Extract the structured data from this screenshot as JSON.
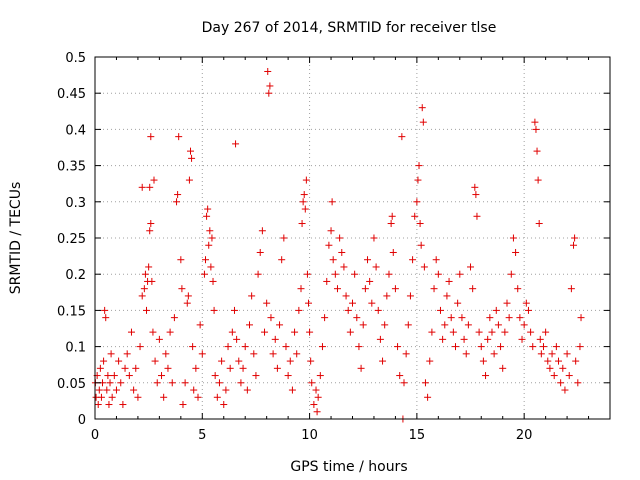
{
  "chart_data": {
    "type": "scatter",
    "title": "Day 267 of 2014, SRMTID for receiver tlse",
    "xlabel": "GPS time / hours",
    "ylabel": "SRMTID / TECUs",
    "xlim": [
      0,
      24
    ],
    "ylim": [
      0,
      0.5
    ],
    "xticks": [
      0,
      5,
      10,
      15,
      20
    ],
    "xtick_labels": [
      "0",
      "5",
      "10",
      "15",
      "20"
    ],
    "yticks": [
      0,
      0.05,
      0.1,
      0.15,
      0.2,
      0.25,
      0.3,
      0.35,
      0.4,
      0.45,
      0.5
    ],
    "ytick_labels": [
      "0",
      "0.05",
      "0.1",
      "0.15",
      "0.2",
      "0.25",
      "0.3",
      "0.35",
      "0.4",
      "0.45",
      "0.5"
    ],
    "grid": true,
    "marker": "plus",
    "color": "#e00000",
    "series": [
      {
        "values": [
          [
            0.02,
            0.05
          ],
          [
            0.05,
            0.03
          ],
          [
            0.1,
            0.06
          ],
          [
            0.15,
            0.02
          ],
          [
            0.2,
            0.04
          ],
          [
            0.25,
            0.07
          ],
          [
            0.3,
            0.03
          ],
          [
            0.35,
            0.05
          ],
          [
            0.4,
            0.08
          ],
          [
            0.45,
            0.15
          ],
          [
            0.5,
            0.14
          ],
          [
            0.55,
            0.04
          ],
          [
            0.6,
            0.06
          ],
          [
            0.65,
            0.02
          ],
          [
            0.7,
            0.05
          ],
          [
            0.75,
            0.09
          ],
          [
            0.8,
            0.03
          ],
          [
            0.9,
            0.06
          ],
          [
            1.0,
            0.04
          ],
          [
            1.1,
            0.08
          ],
          [
            1.2,
            0.05
          ],
          [
            1.3,
            0.02
          ],
          [
            1.4,
            0.07
          ],
          [
            1.5,
            0.09
          ],
          [
            1.6,
            0.06
          ],
          [
            1.7,
            0.12
          ],
          [
            1.8,
            0.04
          ],
          [
            1.9,
            0.07
          ],
          [
            2.0,
            0.03
          ],
          [
            2.1,
            0.1
          ],
          [
            2.2,
            0.17
          ],
          [
            2.3,
            0.18
          ],
          [
            2.35,
            0.2
          ],
          [
            2.4,
            0.15
          ],
          [
            2.45,
            0.19
          ],
          [
            2.5,
            0.21
          ],
          [
            2.55,
            0.26
          ],
          [
            2.6,
            0.27
          ],
          [
            2.65,
            0.19
          ],
          [
            2.7,
            0.12
          ],
          [
            2.75,
            0.33
          ],
          [
            2.55,
            0.32
          ],
          [
            2.6,
            0.39
          ],
          [
            2.2,
            0.32
          ],
          [
            2.8,
            0.08
          ],
          [
            2.9,
            0.05
          ],
          [
            3.0,
            0.11
          ],
          [
            3.1,
            0.06
          ],
          [
            3.2,
            0.03
          ],
          [
            3.3,
            0.09
          ],
          [
            3.4,
            0.07
          ],
          [
            3.5,
            0.12
          ],
          [
            3.6,
            0.05
          ],
          [
            3.7,
            0.14
          ],
          [
            3.8,
            0.3
          ],
          [
            3.85,
            0.31
          ],
          [
            3.9,
            0.39
          ],
          [
            4.0,
            0.22
          ],
          [
            4.05,
            0.18
          ],
          [
            4.1,
            0.02
          ],
          [
            4.2,
            0.05
          ],
          [
            4.3,
            0.16
          ],
          [
            4.35,
            0.17
          ],
          [
            4.4,
            0.33
          ],
          [
            4.45,
            0.37
          ],
          [
            4.5,
            0.36
          ],
          [
            4.55,
            0.1
          ],
          [
            4.6,
            0.04
          ],
          [
            4.7,
            0.07
          ],
          [
            4.8,
            0.03
          ],
          [
            4.9,
            0.13
          ],
          [
            5.0,
            0.09
          ],
          [
            5.1,
            0.2
          ],
          [
            5.15,
            0.22
          ],
          [
            5.2,
            0.28
          ],
          [
            5.25,
            0.29
          ],
          [
            5.3,
            0.24
          ],
          [
            5.35,
            0.26
          ],
          [
            5.4,
            0.21
          ],
          [
            5.45,
            0.25
          ],
          [
            5.5,
            0.19
          ],
          [
            5.55,
            0.15
          ],
          [
            5.6,
            0.06
          ],
          [
            5.7,
            0.03
          ],
          [
            5.8,
            0.05
          ],
          [
            5.9,
            0.08
          ],
          [
            6.0,
            0.02
          ],
          [
            6.1,
            0.04
          ],
          [
            6.2,
            0.1
          ],
          [
            6.3,
            0.07
          ],
          [
            6.4,
            0.12
          ],
          [
            6.5,
            0.15
          ],
          [
            6.55,
            0.38
          ],
          [
            6.6,
            0.11
          ],
          [
            6.7,
            0.08
          ],
          [
            6.8,
            0.05
          ],
          [
            6.9,
            0.07
          ],
          [
            7.0,
            0.1
          ],
          [
            7.1,
            0.04
          ],
          [
            7.2,
            0.13
          ],
          [
            7.3,
            0.17
          ],
          [
            7.4,
            0.09
          ],
          [
            7.5,
            0.06
          ],
          [
            7.6,
            0.2
          ],
          [
            7.7,
            0.23
          ],
          [
            7.8,
            0.26
          ],
          [
            7.9,
            0.12
          ],
          [
            8.0,
            0.16
          ],
          [
            8.05,
            0.48
          ],
          [
            8.1,
            0.45
          ],
          [
            8.15,
            0.46
          ],
          [
            8.2,
            0.14
          ],
          [
            8.3,
            0.09
          ],
          [
            8.4,
            0.11
          ],
          [
            8.5,
            0.07
          ],
          [
            8.6,
            0.13
          ],
          [
            8.7,
            0.22
          ],
          [
            8.8,
            0.25
          ],
          [
            8.9,
            0.1
          ],
          [
            9.0,
            0.06
          ],
          [
            9.1,
            0.08
          ],
          [
            9.2,
            0.04
          ],
          [
            9.3,
            0.12
          ],
          [
            9.4,
            0.09
          ],
          [
            9.5,
            0.15
          ],
          [
            9.6,
            0.18
          ],
          [
            9.65,
            0.27
          ],
          [
            9.7,
            0.3
          ],
          [
            9.75,
            0.31
          ],
          [
            9.8,
            0.29
          ],
          [
            9.85,
            0.33
          ],
          [
            9.9,
            0.2
          ],
          [
            9.95,
            0.16
          ],
          [
            10.0,
            0.12
          ],
          [
            10.05,
            0.08
          ],
          [
            10.1,
            0.05
          ],
          [
            10.2,
            0.02
          ],
          [
            10.3,
            0.04
          ],
          [
            10.35,
            0.01
          ],
          [
            10.4,
            0.03
          ],
          [
            10.5,
            0.06
          ],
          [
            10.6,
            0.1
          ],
          [
            10.7,
            0.14
          ],
          [
            10.8,
            0.19
          ],
          [
            10.9,
            0.24
          ],
          [
            11.0,
            0.26
          ],
          [
            11.05,
            0.3
          ],
          [
            11.1,
            0.22
          ],
          [
            11.2,
            0.2
          ],
          [
            11.3,
            0.18
          ],
          [
            11.4,
            0.25
          ],
          [
            11.5,
            0.23
          ],
          [
            11.6,
            0.21
          ],
          [
            11.7,
            0.17
          ],
          [
            11.8,
            0.15
          ],
          [
            11.9,
            0.12
          ],
          [
            12.0,
            0.16
          ],
          [
            12.1,
            0.2
          ],
          [
            12.2,
            0.14
          ],
          [
            12.3,
            0.1
          ],
          [
            12.4,
            0.07
          ],
          [
            12.5,
            0.13
          ],
          [
            12.6,
            0.18
          ],
          [
            12.7,
            0.22
          ],
          [
            12.8,
            0.19
          ],
          [
            12.9,
            0.16
          ],
          [
            13.0,
            0.25
          ],
          [
            13.1,
            0.21
          ],
          [
            13.2,
            0.15
          ],
          [
            13.3,
            0.11
          ],
          [
            13.4,
            0.08
          ],
          [
            13.5,
            0.13
          ],
          [
            13.6,
            0.17
          ],
          [
            13.7,
            0.2
          ],
          [
            13.8,
            0.27
          ],
          [
            13.85,
            0.28
          ],
          [
            13.9,
            0.23
          ],
          [
            14.0,
            0.18
          ],
          [
            14.1,
            0.1
          ],
          [
            14.2,
            0.06
          ],
          [
            14.3,
            0.39
          ],
          [
            14.35,
            0.0
          ],
          [
            14.4,
            0.05
          ],
          [
            14.5,
            0.09
          ],
          [
            14.6,
            0.13
          ],
          [
            14.7,
            0.17
          ],
          [
            14.8,
            0.22
          ],
          [
            14.9,
            0.28
          ],
          [
            15.0,
            0.3
          ],
          [
            15.05,
            0.33
          ],
          [
            15.1,
            0.35
          ],
          [
            15.15,
            0.27
          ],
          [
            15.2,
            0.24
          ],
          [
            15.25,
            0.43
          ],
          [
            15.3,
            0.41
          ],
          [
            15.35,
            0.21
          ],
          [
            15.4,
            0.05
          ],
          [
            15.5,
            0.03
          ],
          [
            15.6,
            0.08
          ],
          [
            15.7,
            0.12
          ],
          [
            15.8,
            0.18
          ],
          [
            15.9,
            0.22
          ],
          [
            16.0,
            0.2
          ],
          [
            16.1,
            0.15
          ],
          [
            16.2,
            0.11
          ],
          [
            16.3,
            0.13
          ],
          [
            16.4,
            0.17
          ],
          [
            16.5,
            0.19
          ],
          [
            16.6,
            0.14
          ],
          [
            16.7,
            0.12
          ],
          [
            16.8,
            0.1
          ],
          [
            16.9,
            0.16
          ],
          [
            17.0,
            0.2
          ],
          [
            17.1,
            0.14
          ],
          [
            17.2,
            0.11
          ],
          [
            17.3,
            0.09
          ],
          [
            17.4,
            0.13
          ],
          [
            17.5,
            0.21
          ],
          [
            17.6,
            0.18
          ],
          [
            17.7,
            0.32
          ],
          [
            17.75,
            0.31
          ],
          [
            17.8,
            0.28
          ],
          [
            17.9,
            0.12
          ],
          [
            18.0,
            0.1
          ],
          [
            18.1,
            0.08
          ],
          [
            18.2,
            0.06
          ],
          [
            18.3,
            0.11
          ],
          [
            18.4,
            0.14
          ],
          [
            18.5,
            0.12
          ],
          [
            18.6,
            0.09
          ],
          [
            18.7,
            0.15
          ],
          [
            18.8,
            0.13
          ],
          [
            18.9,
            0.1
          ],
          [
            19.0,
            0.07
          ],
          [
            19.1,
            0.12
          ],
          [
            19.2,
            0.16
          ],
          [
            19.3,
            0.14
          ],
          [
            19.4,
            0.2
          ],
          [
            19.5,
            0.25
          ],
          [
            19.6,
            0.23
          ],
          [
            19.7,
            0.18
          ],
          [
            19.8,
            0.14
          ],
          [
            19.9,
            0.11
          ],
          [
            20.0,
            0.13
          ],
          [
            20.1,
            0.16
          ],
          [
            20.2,
            0.15
          ],
          [
            20.3,
            0.12
          ],
          [
            20.4,
            0.1
          ],
          [
            20.5,
            0.41
          ],
          [
            20.55,
            0.4
          ],
          [
            20.6,
            0.37
          ],
          [
            20.65,
            0.33
          ],
          [
            20.7,
            0.27
          ],
          [
            20.75,
            0.11
          ],
          [
            20.8,
            0.09
          ],
          [
            20.9,
            0.1
          ],
          [
            21.0,
            0.12
          ],
          [
            21.1,
            0.08
          ],
          [
            21.2,
            0.07
          ],
          [
            21.3,
            0.09
          ],
          [
            21.4,
            0.06
          ],
          [
            21.5,
            0.1
          ],
          [
            21.6,
            0.08
          ],
          [
            21.7,
            0.05
          ],
          [
            21.8,
            0.07
          ],
          [
            21.9,
            0.04
          ],
          [
            22.0,
            0.09
          ],
          [
            22.1,
            0.06
          ],
          [
            22.2,
            0.18
          ],
          [
            22.3,
            0.24
          ],
          [
            22.35,
            0.25
          ],
          [
            22.4,
            0.08
          ],
          [
            22.5,
            0.05
          ],
          [
            22.6,
            0.1
          ],
          [
            22.65,
            0.14
          ]
        ]
      }
    ]
  }
}
